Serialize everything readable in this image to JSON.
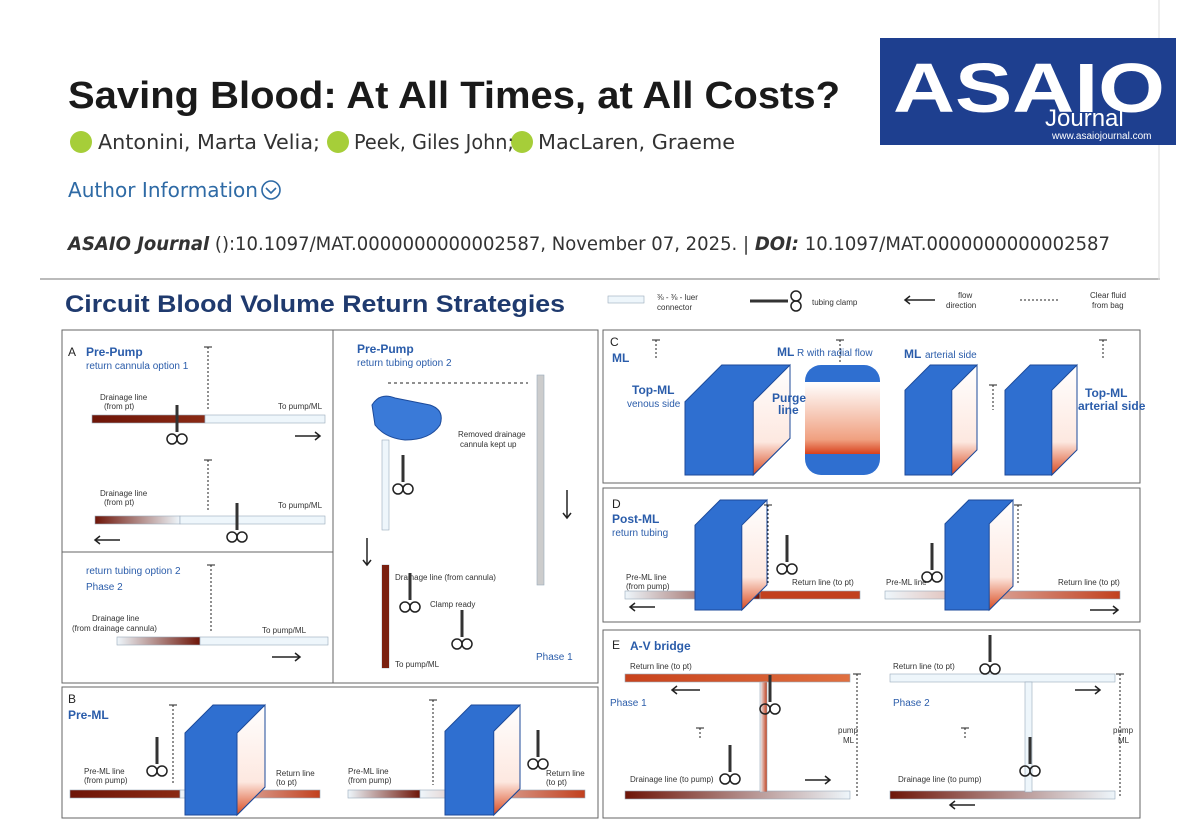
{
  "header": {
    "title": "Saving Blood: At All Times, at All Costs?",
    "authors": [
      "Antonini, Marta Velia;",
      "Peek, Giles John;",
      "MacLaren, Graeme"
    ],
    "author_info": "Author Information",
    "citation": {
      "journal": "ASAIO Journal",
      "text": " ():10.1097/MAT.0000000000002587, November 07, 2025. | ",
      "doi_label": "DOI:",
      "doi": " 10.1097/MAT.0000000000002587"
    }
  },
  "logo": {
    "name": "ASAIO",
    "sub": "Journal",
    "url": "www.asaiojournal.com"
  },
  "figure": {
    "title": "Circuit Blood Volume Return Strategies",
    "legend": [
      "⅜ - ⅜ - luer",
      "connector",
      "tubing clamp",
      "flow",
      "direction",
      "Clear fluid",
      "from bag"
    ],
    "panels": [
      {
        "letter": "A",
        "heading": "Pre-Pump",
        "subheading": "return cannula option 1",
        "labels": [
          "Drainage line",
          "(from pt)",
          "To pump/ML",
          "Drainage line",
          "(from pt)",
          "To pump/ML"
        ]
      },
      {
        "heading": "Pre-Pump",
        "subheading": "return tubing option 2",
        "labels": [
          "Removed drainage",
          "cannula kept up",
          "Drainage line (from cannula)",
          "Clamp ready",
          "To pump/ML",
          "Phase 1"
        ]
      },
      {
        "subheading": "return tubing option 2",
        "heading": "Phase 2",
        "labels": [
          "Drainage line",
          "(from drainage cannula)",
          "To pump/ML"
        ]
      },
      {
        "letter": "B",
        "heading": "Pre-ML",
        "labels": [
          "Pre-ML line",
          "(from pump)",
          "Return line",
          "(to pt)",
          "Pre-ML line",
          "(from pump)",
          "Return line",
          "(to pt)"
        ]
      },
      {
        "letter": "C",
        "heading": "ML",
        "labels": [
          "Top-ML",
          "venous side",
          "ML",
          "R with radial flow",
          "Purge",
          "line",
          "ML",
          "arterial side",
          "Top-ML",
          "arterial side"
        ]
      },
      {
        "letter": "D",
        "heading": "Post-ML",
        "subheading": "return tubing",
        "labels": [
          "Pre-ML line",
          "(from pump)",
          "Return line (to pt)",
          "Pre-ML line",
          "Return line (to pt)"
        ]
      },
      {
        "letter": "E",
        "heading": "A-V bridge",
        "labels": [
          "Return line (to pt)",
          "Phase 1",
          "pump",
          "ML",
          "Drainage line (to pump)",
          "Return line (to pt)",
          "Phase 2",
          "pump",
          "ML",
          "Drainage line (to pump)"
        ]
      }
    ]
  }
}
